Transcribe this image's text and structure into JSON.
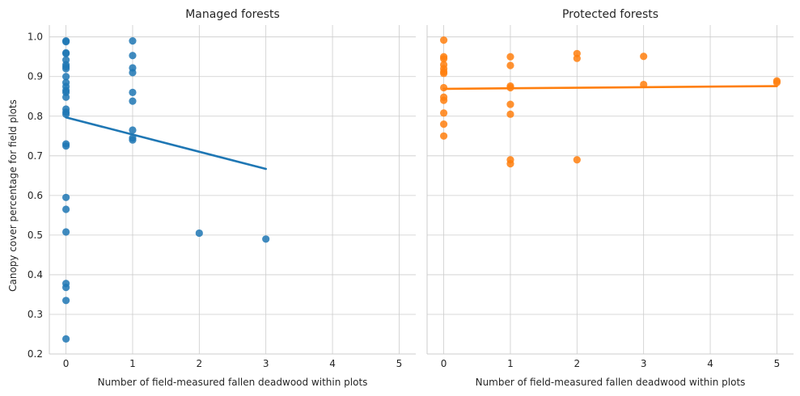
{
  "chart_data": {
    "type": "scatter",
    "ylabel": "Canopy cover percentage for field plots",
    "ylim": [
      0.2,
      1.03
    ],
    "yticks": [
      0.2,
      0.3,
      0.4,
      0.5,
      0.6,
      0.7,
      0.8,
      0.9,
      1.0
    ],
    "ytick_labels": [
      "0.2",
      "0.3",
      "0.4",
      "0.5",
      "0.6",
      "0.7",
      "0.8",
      "0.9",
      "1.0"
    ],
    "grid": true,
    "panels": [
      {
        "title": "Managed forests",
        "xlabel": "Number of field-measured fallen deadwood within plots",
        "xlim": [
          -0.25,
          5.25
        ],
        "xticks": [
          0,
          1,
          2,
          3,
          4,
          5
        ],
        "xtick_labels": [
          "0",
          "1",
          "2",
          "3",
          "4",
          "5"
        ],
        "color": "#1f77b4",
        "points": [
          [
            0,
            0.99
          ],
          [
            0,
            0.988
          ],
          [
            0,
            0.96
          ],
          [
            0,
            0.958
          ],
          [
            0,
            0.942
          ],
          [
            0,
            0.93
          ],
          [
            0,
            0.925
          ],
          [
            0,
            0.92
          ],
          [
            0,
            0.9
          ],
          [
            0,
            0.885
          ],
          [
            0,
            0.875
          ],
          [
            0,
            0.865
          ],
          [
            0,
            0.86
          ],
          [
            0,
            0.848
          ],
          [
            0,
            0.818
          ],
          [
            0,
            0.81
          ],
          [
            0,
            0.805
          ],
          [
            0,
            0.73
          ],
          [
            0,
            0.725
          ],
          [
            0,
            0.595
          ],
          [
            0,
            0.565
          ],
          [
            0,
            0.508
          ],
          [
            0,
            0.378
          ],
          [
            0,
            0.368
          ],
          [
            0,
            0.335
          ],
          [
            0,
            0.238
          ],
          [
            1,
            0.99
          ],
          [
            1,
            0.953
          ],
          [
            1,
            0.922
          ],
          [
            1,
            0.91
          ],
          [
            1,
            0.86
          ],
          [
            1,
            0.838
          ],
          [
            1,
            0.765
          ],
          [
            1,
            0.745
          ],
          [
            1,
            0.74
          ],
          [
            2,
            0.505
          ],
          [
            3,
            0.49
          ]
        ],
        "fit": {
          "x": [
            0,
            3
          ],
          "y": [
            0.797,
            0.667
          ]
        }
      },
      {
        "title": "Protected forests",
        "xlabel": "Number of field-measured fallen deadwood within plots",
        "xlim": [
          -0.25,
          5.25
        ],
        "xticks": [
          0,
          1,
          2,
          3,
          4,
          5
        ],
        "xtick_labels": [
          "0",
          "1",
          "2",
          "3",
          "4",
          "5"
        ],
        "color": "#ff7f0e",
        "points": [
          [
            0,
            0.992
          ],
          [
            0,
            0.95
          ],
          [
            0,
            0.945
          ],
          [
            0,
            0.93
          ],
          [
            0,
            0.92
          ],
          [
            0,
            0.912
          ],
          [
            0,
            0.908
          ],
          [
            0,
            0.872
          ],
          [
            0,
            0.848
          ],
          [
            0,
            0.84
          ],
          [
            0,
            0.808
          ],
          [
            0,
            0.78
          ],
          [
            0,
            0.75
          ],
          [
            1,
            0.95
          ],
          [
            1,
            0.928
          ],
          [
            1,
            0.876
          ],
          [
            1,
            0.872
          ],
          [
            1,
            0.83
          ],
          [
            1,
            0.805
          ],
          [
            1,
            0.69
          ],
          [
            1,
            0.68
          ],
          [
            2,
            0.958
          ],
          [
            2,
            0.946
          ],
          [
            2,
            0.69
          ],
          [
            3,
            0.951
          ],
          [
            3,
            0.88
          ],
          [
            5,
            0.889
          ],
          [
            5,
            0.885
          ]
        ],
        "fit": {
          "x": [
            0,
            5
          ],
          "y": [
            0.869,
            0.876
          ]
        }
      }
    ]
  }
}
